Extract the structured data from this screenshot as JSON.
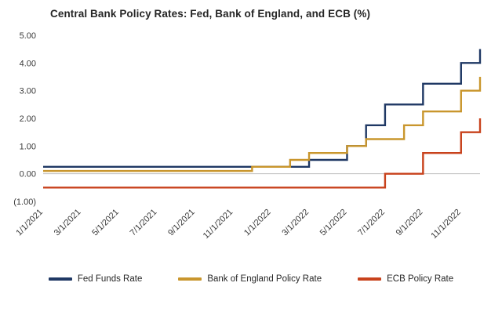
{
  "title": "Central Bank Policy Rates: Fed, Bank of England, and ECB (%)",
  "colors": {
    "grid_zero_line": "#bfbfbf",
    "title_text": "#262626",
    "tick_text": "#3a3a3a"
  },
  "chart_data": {
    "type": "line",
    "step": true,
    "title": "Central Bank Policy Rates: Fed, Bank of England, and ECB (%)",
    "xlabel": "",
    "ylabel": "",
    "ylim": [
      -1.0,
      5.0
    ],
    "grid": "zero-line-only",
    "legend_position": "bottom",
    "y_ticks": [
      5.0,
      4.0,
      3.0,
      2.0,
      1.0,
      0.0,
      -1.0
    ],
    "y_tick_labels": [
      "5.00",
      "4.00",
      "3.00",
      "2.00",
      "1.00",
      "0.00",
      "(1.00)"
    ],
    "x": [
      "1/1/2021",
      "2/1/2021",
      "3/1/2021",
      "4/1/2021",
      "5/1/2021",
      "6/1/2021",
      "7/1/2021",
      "8/1/2021",
      "9/1/2021",
      "10/1/2021",
      "11/1/2021",
      "12/1/2021",
      "1/1/2022",
      "2/1/2022",
      "3/1/2022",
      "4/1/2022",
      "5/1/2022",
      "6/1/2022",
      "7/1/2022",
      "8/1/2022",
      "9/1/2022",
      "10/1/2022",
      "11/1/2022",
      "12/1/2022"
    ],
    "x_tick_indices": [
      0,
      2,
      4,
      6,
      8,
      10,
      12,
      14,
      16,
      18,
      20,
      22
    ],
    "x_tick_labels": [
      "1/1/2021",
      "3/1/2021",
      "5/1/2021",
      "7/1/2021",
      "9/1/2021",
      "11/1/2021",
      "1/1/2022",
      "3/1/2022",
      "5/1/2022",
      "7/1/2022",
      "9/1/2022",
      "11/1/2022"
    ],
    "series": [
      {
        "name": "Fed Funds Rate",
        "color": "#1f3864",
        "values": [
          0.25,
          0.25,
          0.25,
          0.25,
          0.25,
          0.25,
          0.25,
          0.25,
          0.25,
          0.25,
          0.25,
          0.25,
          0.25,
          0.25,
          0.5,
          0.5,
          1.0,
          1.75,
          2.5,
          2.5,
          3.25,
          3.25,
          4.0,
          4.5
        ]
      },
      {
        "name": "Bank of England Policy Rate",
        "color": "#c9962d",
        "values": [
          0.1,
          0.1,
          0.1,
          0.1,
          0.1,
          0.1,
          0.1,
          0.1,
          0.1,
          0.1,
          0.1,
          0.25,
          0.25,
          0.5,
          0.75,
          0.75,
          1.0,
          1.25,
          1.25,
          1.75,
          2.25,
          2.25,
          3.0,
          3.5
        ]
      },
      {
        "name": "ECB Policy Rate",
        "color": "#c8421c",
        "values": [
          -0.5,
          -0.5,
          -0.5,
          -0.5,
          -0.5,
          -0.5,
          -0.5,
          -0.5,
          -0.5,
          -0.5,
          -0.5,
          -0.5,
          -0.5,
          -0.5,
          -0.5,
          -0.5,
          -0.5,
          -0.5,
          0.0,
          0.0,
          0.75,
          0.75,
          1.5,
          2.0
        ]
      }
    ]
  }
}
